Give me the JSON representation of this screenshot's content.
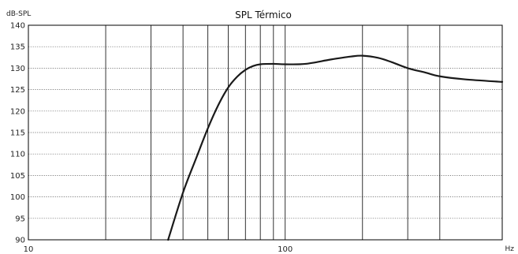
{
  "chart_data": {
    "type": "line",
    "title": "SPL Térmico",
    "ylabel": "dB-SPL",
    "xlabel": "Hz",
    "x_scale": "log",
    "xlim": [
      10,
      700
    ],
    "ylim": [
      90,
      140
    ],
    "x_tick_labels": [
      {
        "value": 10,
        "label": "10"
      },
      {
        "value": 100,
        "label": "100"
      }
    ],
    "x_gridlines": [
      20,
      30,
      40,
      50,
      60,
      70,
      80,
      90,
      100,
      200,
      300,
      400
    ],
    "y_ticks": [
      90,
      95,
      100,
      105,
      110,
      115,
      120,
      125,
      130,
      135,
      140
    ],
    "grid": true,
    "series": [
      {
        "color": "#1a1a1a",
        "points": [
          {
            "x": 35,
            "y": 90
          },
          {
            "x": 40,
            "y": 101
          },
          {
            "x": 45,
            "y": 109
          },
          {
            "x": 50,
            "y": 116
          },
          {
            "x": 55,
            "y": 121.5
          },
          {
            "x": 60,
            "y": 125.5
          },
          {
            "x": 65,
            "y": 128
          },
          {
            "x": 70,
            "y": 129.6
          },
          {
            "x": 75,
            "y": 130.5
          },
          {
            "x": 80,
            "y": 130.9
          },
          {
            "x": 90,
            "y": 131
          },
          {
            "x": 100,
            "y": 130.9
          },
          {
            "x": 120,
            "y": 131
          },
          {
            "x": 150,
            "y": 132
          },
          {
            "x": 180,
            "y": 132.7
          },
          {
            "x": 200,
            "y": 132.9
          },
          {
            "x": 230,
            "y": 132.4
          },
          {
            "x": 260,
            "y": 131.4
          },
          {
            "x": 300,
            "y": 130
          },
          {
            "x": 350,
            "y": 129
          },
          {
            "x": 400,
            "y": 128.1
          },
          {
            "x": 500,
            "y": 127.4
          },
          {
            "x": 700,
            "y": 126.8
          }
        ]
      }
    ]
  }
}
